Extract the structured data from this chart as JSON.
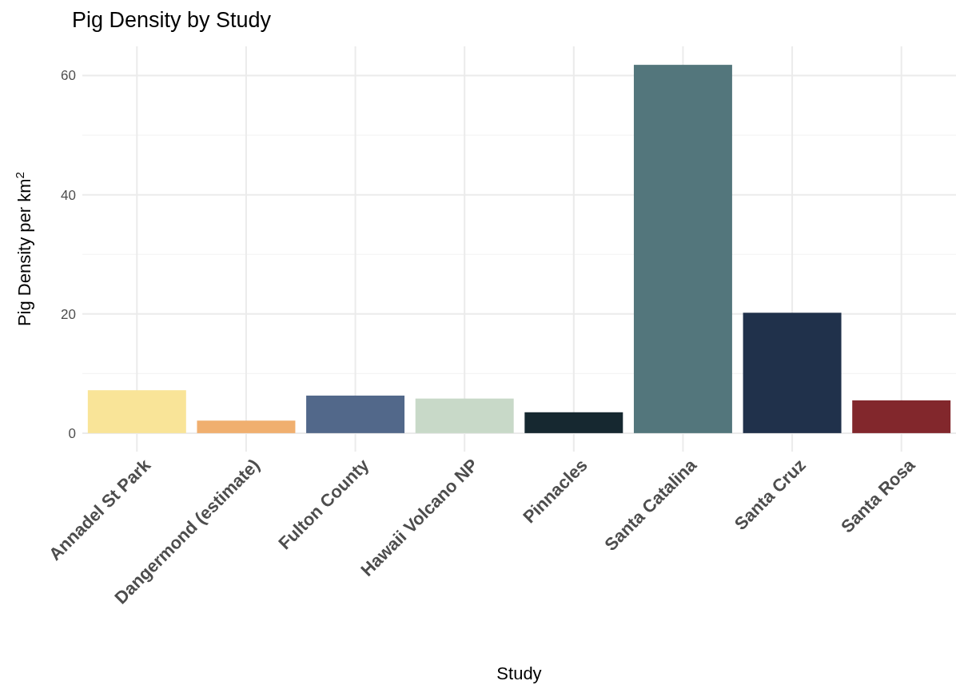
{
  "chart_data": {
    "type": "bar",
    "title": "Pig Density by Study",
    "xlabel": "Study",
    "ylabel": "Pig Density per km$^{2}$",
    "categories": [
      "Annadel St Park",
      "Dangermond (estimate)",
      "Fulton County",
      "Hawaii Volcano NP",
      "Pinnacles",
      "Santa Catalina",
      "Santa Cruz",
      "Santa Rosa"
    ],
    "values": [
      7.2,
      2.1,
      6.3,
      5.8,
      3.5,
      61.8,
      20.2,
      5.5
    ],
    "colors": [
      "#f9e498",
      "#f0af6f",
      "#52688a",
      "#c8d9c8",
      "#162830",
      "#53767c",
      "#20314b",
      "#82272c"
    ],
    "ylim": [
      -3.1,
      64.9
    ],
    "yticks": [
      0,
      {
        "value": 10,
        "label": null
      },
      20,
      {
        "value": 30,
        "label": null
      },
      40,
      {
        "value": 50,
        "label": null
      },
      60
    ],
    "grid": true
  }
}
